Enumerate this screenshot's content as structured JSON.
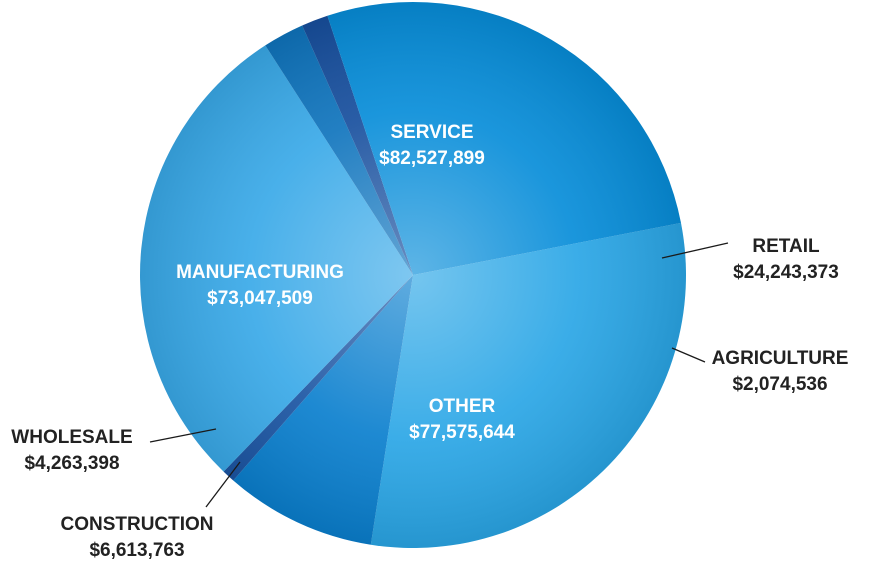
{
  "chart_data": {
    "type": "pie",
    "title": "",
    "slices": [
      {
        "name": "SERVICE",
        "value": 82527899,
        "label": "$82,527,899",
        "color": "#2aa6e6"
      },
      {
        "name": "RETAIL",
        "value": 24243373,
        "label": "$24,243,373",
        "color": "#0a7fce"
      },
      {
        "name": "AGRICULTURE",
        "value": 2074536,
        "label": "$2,074,536",
        "color": "#1b55a3"
      },
      {
        "name": "OTHER",
        "value": 77575644,
        "label": "$77,575,644",
        "color": "#39a9e8"
      },
      {
        "name": "CONSTRUCTION",
        "value": 6613763,
        "label": "$6,613,763",
        "color": "#0f74bd"
      },
      {
        "name": "WHOLESALE",
        "value": 4263398,
        "label": "$4,263,398",
        "color": "#174f9e"
      },
      {
        "name": "MANUFACTURING",
        "value": 73047509,
        "label": "$73,047,509",
        "color": "#078dd9"
      }
    ],
    "label_placement": {
      "SERVICE": "inside",
      "RETAIL": "outside-right",
      "AGRICULTURE": "outside-right",
      "OTHER": "inside",
      "CONSTRUCTION": "outside-bottom-left",
      "WHOLESALE": "outside-left",
      "MANUFACTURING": "inside"
    }
  }
}
